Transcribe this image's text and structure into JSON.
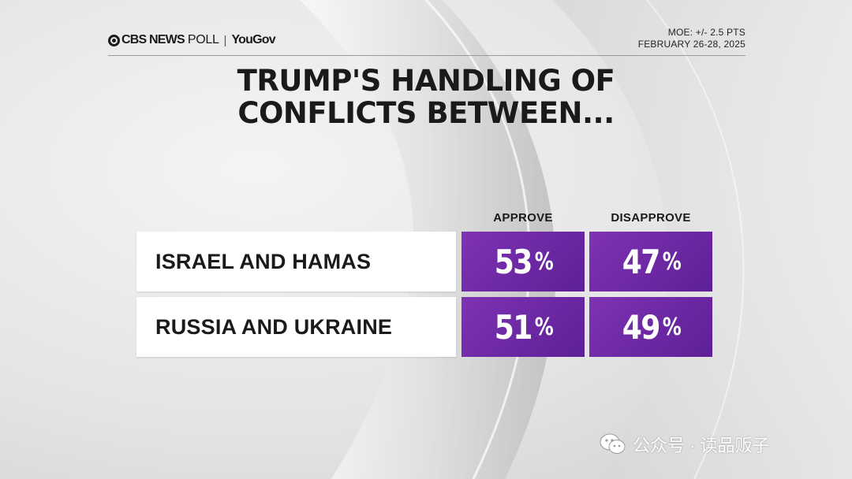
{
  "header": {
    "brand_network": "CBS NEWS",
    "brand_poll": "POLL",
    "brand_separator": "|",
    "brand_partner": "YouGov",
    "moe": "MOE: +/- 2.5 PTS",
    "dates": "FEBRUARY 26-28, 2025"
  },
  "title": {
    "line1": "TRUMP'S HANDLING OF",
    "line2": "CONFLICTS BETWEEN..."
  },
  "colors": {
    "approve": "#7e33b3",
    "disapprove": "#7e33b3",
    "bar_dark": "#5e1f96",
    "text_dark": "#1a1a1a"
  },
  "chart_data": {
    "type": "table",
    "title": "TRUMP'S HANDLING OF CONFLICTS BETWEEN...",
    "columns": [
      "APPROVE",
      "DISAPPROVE"
    ],
    "rows": [
      {
        "label": "ISRAEL AND HAMAS",
        "values": [
          53,
          47
        ]
      },
      {
        "label": "RUSSIA AND UKRAINE",
        "values": [
          51,
          49
        ]
      }
    ],
    "value_suffix": "%"
  },
  "watermark": {
    "icon": "wechat-icon",
    "text": "公众号 · 读品贩子"
  }
}
